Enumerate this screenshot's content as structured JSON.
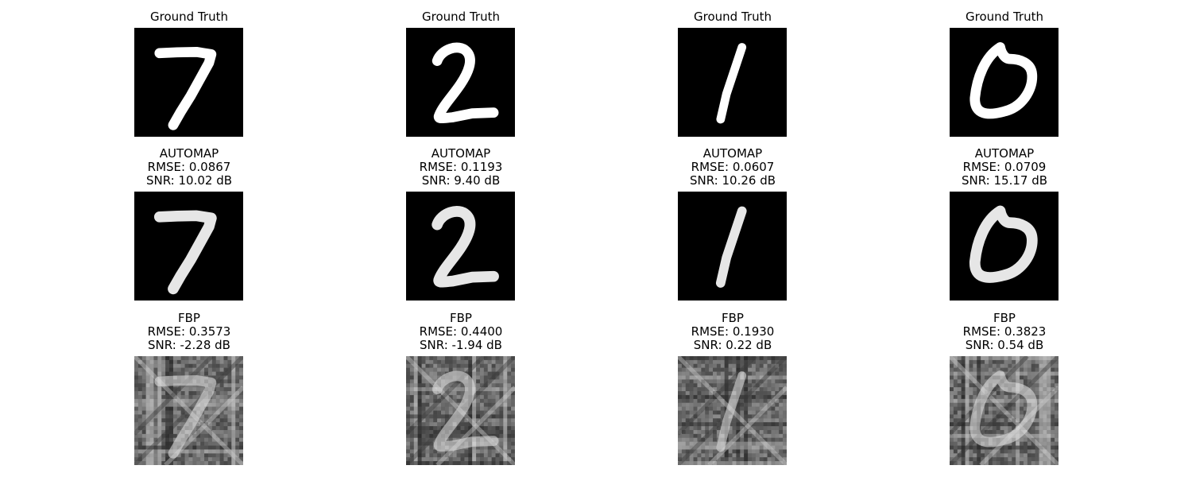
{
  "figure": {
    "rows": [
      {
        "name": "ground-truth",
        "panels": [
          {
            "title": [
              "Ground Truth"
            ],
            "digit": "7"
          },
          {
            "title": [
              "Ground Truth"
            ],
            "digit": "2"
          },
          {
            "title": [
              "Ground Truth"
            ],
            "digit": "1"
          },
          {
            "title": [
              "Ground Truth"
            ],
            "digit": "0"
          }
        ]
      },
      {
        "name": "automap",
        "panels": [
          {
            "title": [
              "AUTOMAP",
              "RMSE: 0.0867",
              "SNR: 10.02 dB"
            ],
            "digit": "7"
          },
          {
            "title": [
              "AUTOMAP",
              "RMSE: 0.1193",
              "SNR: 9.40 dB"
            ],
            "digit": "2"
          },
          {
            "title": [
              "AUTOMAP",
              "RMSE: 0.0607",
              "SNR: 10.26 dB"
            ],
            "digit": "1"
          },
          {
            "title": [
              "AUTOMAP",
              "RMSE: 0.0709",
              "SNR: 15.17 dB"
            ],
            "digit": "0"
          }
        ]
      },
      {
        "name": "fbp",
        "panels": [
          {
            "title": [
              "FBP",
              "RMSE: 0.3573",
              "SNR: -2.28 dB"
            ],
            "digit": "7"
          },
          {
            "title": [
              "FBP",
              "RMSE: 0.4400",
              "SNR: -1.94 dB"
            ],
            "digit": "2"
          },
          {
            "title": [
              "FBP",
              "RMSE: 0.1930",
              "SNR: 0.22 dB"
            ],
            "digit": "1"
          },
          {
            "title": [
              "FBP",
              "RMSE: 0.3823",
              "SNR: 0.54 dB"
            ],
            "digit": "0"
          }
        ]
      }
    ]
  }
}
